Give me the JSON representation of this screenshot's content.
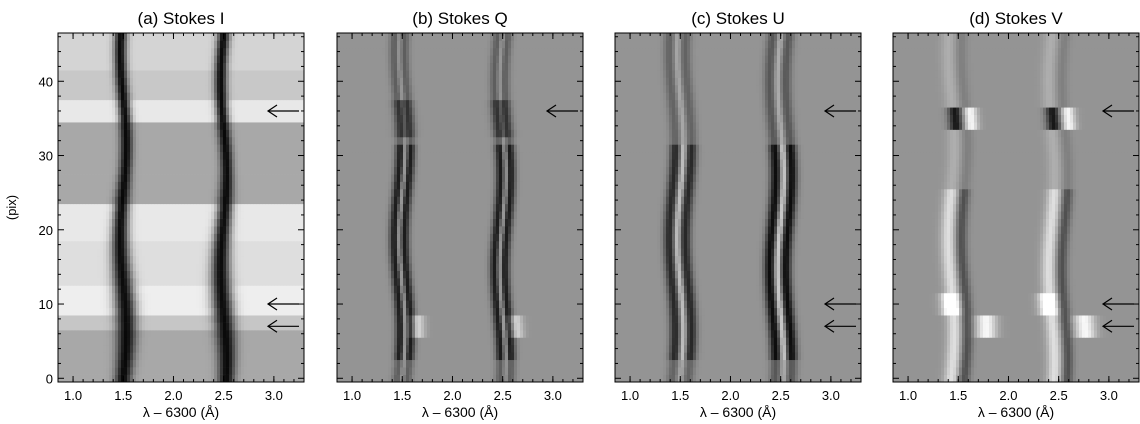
{
  "chart_data": [
    {
      "type": "heatmap",
      "title": "(a) Stokes I",
      "xlabel": "λ – 6300 (Å)",
      "ylabel": "(pix)",
      "xlim": [
        0.85,
        3.3
      ],
      "ylim": [
        -0.5,
        46.5
      ],
      "xticks": [
        "1.0",
        "1.5",
        "2.0",
        "2.5",
        "3.0"
      ],
      "yticks": [
        "0",
        "10",
        "20",
        "30",
        "40"
      ],
      "line_centers": [
        1.5,
        2.5
      ],
      "arrows_y": [
        36,
        10,
        7
      ],
      "grayscale": "black = low intensity, white = high intensity"
    },
    {
      "type": "heatmap",
      "title": "(b) Stokes Q",
      "xlabel": "λ – 6300 (Å)",
      "xlim": [
        0.85,
        3.3
      ],
      "ylim": [
        -0.5,
        46.5
      ],
      "xticks": [
        "1.0",
        "1.5",
        "2.0",
        "2.5",
        "3.0"
      ],
      "line_centers": [
        1.5,
        2.5
      ],
      "arrows_y": [
        36
      ],
      "grayscale": "gray = zero, black = negative, white = positive"
    },
    {
      "type": "heatmap",
      "title": "(c) Stokes U",
      "xlabel": "λ – 6300 (Å)",
      "xlim": [
        0.85,
        3.3
      ],
      "ylim": [
        -0.5,
        46.5
      ],
      "xticks": [
        "1.0",
        "1.5",
        "2.0",
        "2.5",
        "3.0"
      ],
      "line_centers": [
        1.5,
        2.5
      ],
      "arrows_y": [
        36,
        10,
        7
      ],
      "grayscale": "gray = zero, black = negative, white = positive"
    },
    {
      "type": "heatmap",
      "title": "(d) Stokes V",
      "xlabel": "λ – 6300 (Å)",
      "xlim": [
        0.85,
        3.3
      ],
      "ylim": [
        -0.5,
        46.5
      ],
      "xticks": [
        "1.0",
        "1.5",
        "2.0",
        "2.5",
        "3.0"
      ],
      "line_centers": [
        1.5,
        2.5
      ],
      "arrows_y": [
        36,
        10,
        7
      ],
      "grayscale": "gray = zero, black = negative, white = positive"
    }
  ]
}
